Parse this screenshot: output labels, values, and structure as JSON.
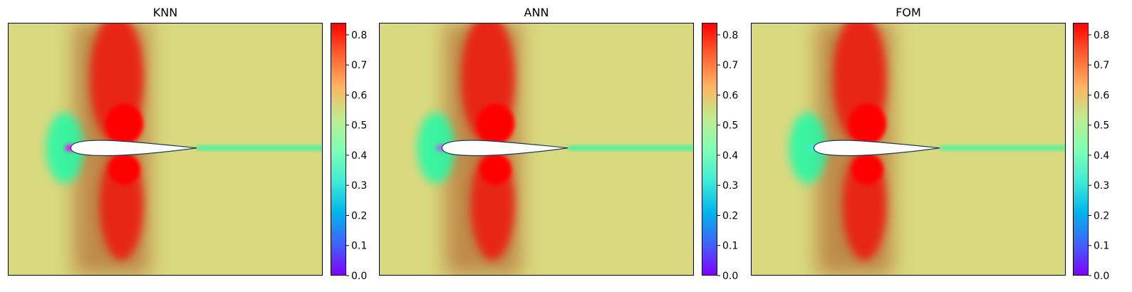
{
  "chart_data": [
    {
      "type": "heatmap",
      "title": "KNN",
      "xlabel": "",
      "ylabel": "",
      "colormap": "rainbow",
      "colorbar": {
        "range": [
          0.0,
          0.84
        ],
        "ticks": [
          "0.0",
          "0.1",
          "0.2",
          "0.3",
          "0.4",
          "0.5",
          "0.6",
          "0.7",
          "0.8"
        ]
      },
      "field": {
        "freestream": 0.6,
        "max": 0.84,
        "stagnation": 0.0,
        "wake": 0.42
      }
    },
    {
      "type": "heatmap",
      "title": "ANN",
      "xlabel": "",
      "ylabel": "",
      "colormap": "rainbow",
      "colorbar": {
        "range": [
          0.0,
          0.84
        ],
        "ticks": [
          "0.0",
          "0.1",
          "0.2",
          "0.3",
          "0.4",
          "0.5",
          "0.6",
          "0.7",
          "0.8"
        ]
      },
      "field": {
        "freestream": 0.6,
        "max": 0.84,
        "stagnation": 0.1,
        "wake": 0.42
      }
    },
    {
      "type": "heatmap",
      "title": "FOM",
      "xlabel": "",
      "ylabel": "",
      "colormap": "rainbow",
      "colorbar": {
        "range": [
          0.0,
          0.84
        ],
        "ticks": [
          "0.0",
          "0.1",
          "0.2",
          "0.3",
          "0.4",
          "0.5",
          "0.6",
          "0.7",
          "0.8"
        ]
      },
      "field": {
        "freestream": 0.6,
        "max": 0.84,
        "stagnation": 0.3,
        "wake": 0.45
      }
    }
  ]
}
